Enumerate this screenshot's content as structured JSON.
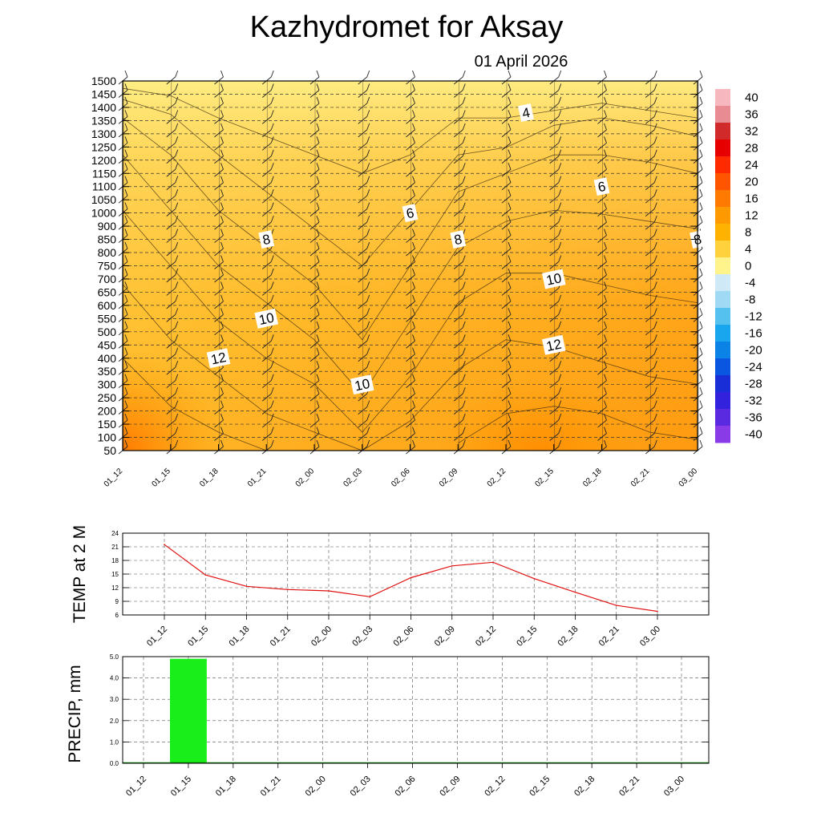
{
  "title": "Kazhydromet  for Aksay",
  "date": "01 April 2026",
  "time_labels": [
    "01_12",
    "01_15",
    "01_18",
    "01_21",
    "02_00",
    "02_03",
    "02_06",
    "02_09",
    "02_12",
    "02_15",
    "02_18",
    "02_21",
    "03_00"
  ],
  "chart_data": [
    {
      "type": "heatmap",
      "name": "temperature cross-section",
      "y_ticks": [
        1500,
        1450,
        1400,
        1350,
        1300,
        1250,
        1200,
        1150,
        1100,
        1050,
        1000,
        900,
        850,
        800,
        750,
        700,
        650,
        600,
        550,
        500,
        450,
        400,
        350,
        300,
        250,
        200,
        150,
        100,
        50
      ],
      "colorbar": {
        "labels": [
          "40",
          "36",
          "32",
          "28",
          "24",
          "20",
          "16",
          "12",
          "8",
          "4",
          "0",
          "-4",
          "-8",
          "-12",
          "-16",
          "-20",
          "-24",
          "-28",
          "-32",
          "-36",
          "-40"
        ],
        "colors": [
          "#f6b7be",
          "#e98b93",
          "#d12a2a",
          "#e60000",
          "#ff2a00",
          "#ff5500",
          "#ff7a00",
          "#ff9900",
          "#ffb300",
          "#ffd23d",
          "#fff38c",
          "#cfe9f7",
          "#9fd9f3",
          "#55c1ef",
          "#1aa6ee",
          "#0a82e6",
          "#0a56e0",
          "#1a2ed8",
          "#3322dd",
          "#5a2ae0",
          "#8a3be8"
        ]
      },
      "contour_labels": [
        {
          "text": "4",
          "time": "02_12",
          "level": 1380
        },
        {
          "text": "6",
          "time": "02_06",
          "level": 1000
        },
        {
          "text": "6",
          "time": "02_18",
          "level": 1100
        },
        {
          "text": "8",
          "time": "01_21",
          "level": 850
        },
        {
          "text": "8",
          "time": "02_09",
          "level": 850
        },
        {
          "text": "8",
          "time": "03_00",
          "level": 850
        },
        {
          "text": "10",
          "time": "01_21",
          "level": 550
        },
        {
          "text": "10",
          "time": "02_15",
          "level": 700
        },
        {
          "text": "10",
          "time": "02_03",
          "level": 300
        },
        {
          "text": "12",
          "time": "01_18",
          "level": 400
        },
        {
          "text": "12",
          "time": "02_15",
          "level": 450
        }
      ]
    },
    {
      "type": "line",
      "ylabel": "TEMP at 2 M",
      "ylim": [
        6,
        24
      ],
      "y_ticks": [
        "24",
        "21",
        "18",
        "15",
        "12",
        "9",
        "6"
      ],
      "x": [
        "01_12",
        "01_15",
        "01_18",
        "01_21",
        "02_00",
        "02_03",
        "02_06",
        "02_09",
        "02_12",
        "02_15",
        "02_18",
        "02_21",
        "03_00"
      ],
      "values": [
        21.5,
        14.8,
        12.3,
        11.6,
        11.3,
        10.0,
        14.2,
        16.8,
        17.6,
        14.0,
        11.0,
        8.1,
        6.8
      ],
      "color": "#e01010"
    },
    {
      "type": "bar",
      "ylabel": "PRECIP, mm",
      "ylim": [
        0,
        5
      ],
      "y_ticks": [
        "5.0",
        "4.0",
        "3.0",
        "2.0",
        "1.0",
        "0.0"
      ],
      "x": [
        "01_12",
        "01_15",
        "01_18",
        "01_21",
        "02_00",
        "02_03",
        "02_06",
        "02_09",
        "02_12",
        "02_15",
        "02_18",
        "02_21",
        "03_00"
      ],
      "values": [
        0,
        4.9,
        0,
        0,
        0,
        0,
        0,
        0,
        0,
        0,
        0,
        0,
        0
      ],
      "color": "#1aee1a"
    }
  ]
}
